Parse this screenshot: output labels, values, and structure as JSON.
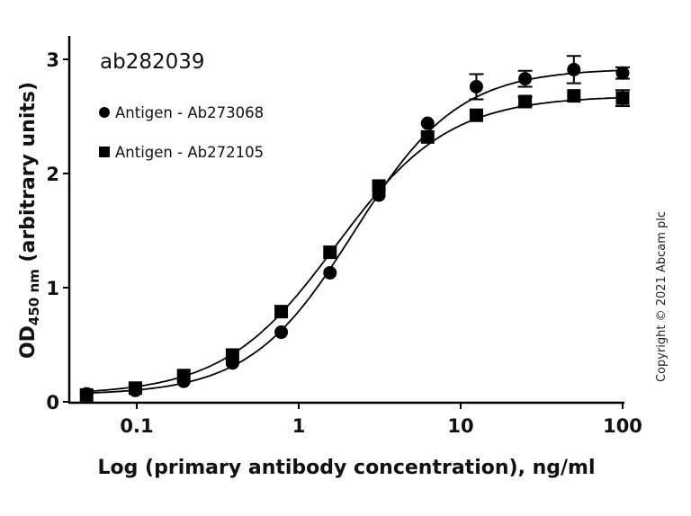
{
  "chart_data": {
    "type": "scatter",
    "title": "ab282039",
    "xlabel": "Log (primary antibody concentration), ng/ml",
    "ylabel_main": "OD",
    "ylabel_sub": "450 nm",
    "ylabel_rest": " (arbitrary units)",
    "ylabel": "OD450 nm (arbitrary units)",
    "xscale": "log",
    "xlim": [
      0.04,
      100
    ],
    "ylim": [
      0,
      3.2
    ],
    "x_ticks": [
      0.1,
      1,
      10,
      100
    ],
    "x_tick_labels": [
      "0.1",
      "1",
      "10",
      "100"
    ],
    "y_ticks": [
      0,
      1,
      2,
      3
    ],
    "y_tick_labels": [
      "0",
      "1",
      "2",
      "3"
    ],
    "grid": false,
    "legend_position": "upper-left",
    "x": [
      0.049,
      0.098,
      0.195,
      0.39,
      0.78,
      1.56,
      3.125,
      6.25,
      12.5,
      25,
      50,
      100
    ],
    "series": [
      {
        "name": "Antigen - Ab273068",
        "marker": "circle",
        "color": "#000000",
        "values": [
          0.07,
          0.1,
          0.18,
          0.34,
          0.61,
          1.13,
          1.81,
          2.44,
          2.76,
          2.83,
          2.91,
          2.88
        ],
        "errors": [
          0.02,
          0.02,
          0.02,
          0.02,
          0.02,
          0.03,
          0.03,
          0.03,
          0.11,
          0.07,
          0.12,
          0.05
        ]
      },
      {
        "name": "Antigen - Ab272105",
        "marker": "square",
        "color": "#000000",
        "values": [
          0.06,
          0.12,
          0.23,
          0.41,
          0.79,
          1.31,
          1.89,
          2.32,
          2.51,
          2.63,
          2.68,
          2.66
        ],
        "errors": [
          0.02,
          0.02,
          0.02,
          0.02,
          0.02,
          0.03,
          0.03,
          0.03,
          0.03,
          0.04,
          0.03,
          0.07
        ]
      }
    ],
    "fit": "4-parameter logistic curve per series",
    "annotations": [
      "Copyright © 2021 Abcam plc"
    ]
  },
  "legend": {
    "items": [
      {
        "label": "Antigen - Ab273068",
        "marker": "circle"
      },
      {
        "label": "Antigen - Ab272105",
        "marker": "square"
      }
    ]
  },
  "copyright": "Copyright © 2021 Abcam plc"
}
